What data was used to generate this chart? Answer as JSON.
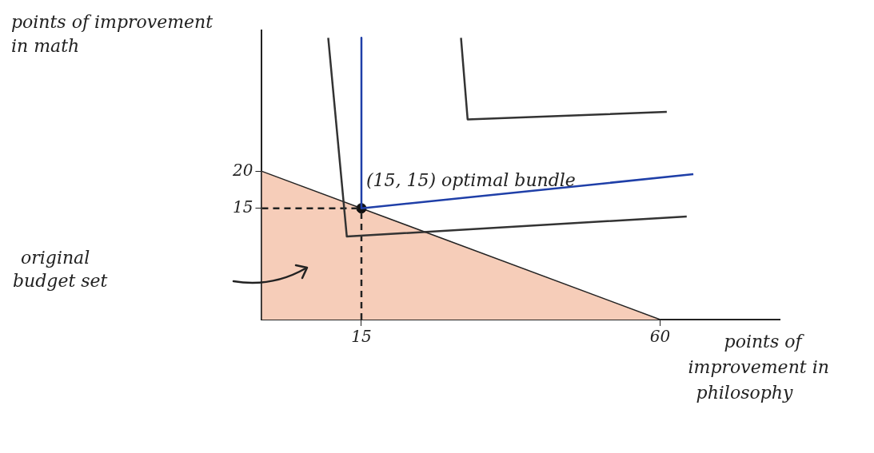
{
  "chart_data": {
    "type": "line",
    "xlabel": "points of improvement in philosophy",
    "ylabel": "points of improvement in math",
    "xlim": [
      0,
      78
    ],
    "ylim": [
      0,
      39
    ],
    "xticks": [
      15,
      60
    ],
    "yticks": [
      15,
      20
    ],
    "grid": false,
    "legend": false,
    "series": [
      {
        "type": "area",
        "color": "#f6cdb9",
        "x": [
          0,
          60
        ],
        "values": [
          20,
          0
        ]
      },
      {
        "color": "#333333",
        "x": [
          10,
          12.8,
          64
        ],
        "values": [
          38,
          11.2,
          13.9
        ]
      },
      {
        "color": "#1f3fa8",
        "x": [
          15,
          15,
          65
        ],
        "values": [
          38,
          15,
          19.6
        ]
      },
      {
        "color": "#333333",
        "x": [
          30,
          31,
          61
        ],
        "values": [
          38,
          27,
          28
        ]
      },
      {
        "color": "#222222",
        "line_style": "dashed",
        "x": [
          0,
          15
        ],
        "values": [
          15,
          15
        ]
      },
      {
        "color": "#222222",
        "line_style": "dashed",
        "x": [
          15,
          15
        ],
        "values": [
          0,
          15
        ]
      },
      {
        "type": "scatter",
        "color": "#111111",
        "marker": "circle",
        "x": [
          15
        ],
        "values": [
          15
        ]
      }
    ],
    "annotations": [
      {
        "text": "(15, 15) optimal bundle",
        "x": 15,
        "y": 15
      },
      "original budget set"
    ]
  }
}
